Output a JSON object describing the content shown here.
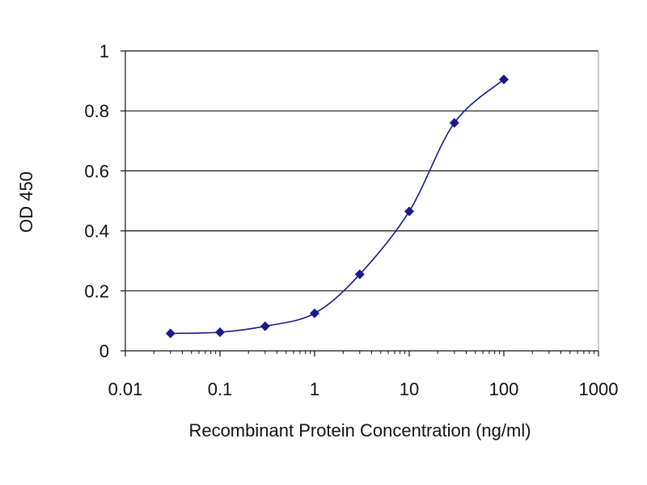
{
  "chart_data": {
    "type": "line",
    "title": "",
    "xlabel": "Recombinant Protein Concentration (ng/ml)",
    "ylabel": "OD 450",
    "x_scale": "log",
    "xlim": [
      0.01,
      1000
    ],
    "ylim": [
      0,
      1
    ],
    "x_ticks": [
      {
        "value": 0.01,
        "label": "0.01"
      },
      {
        "value": 0.1,
        "label": "0.1"
      },
      {
        "value": 1,
        "label": "1"
      },
      {
        "value": 10,
        "label": "10"
      },
      {
        "value": 100,
        "label": "100"
      },
      {
        "value": 1000,
        "label": "1000"
      }
    ],
    "y_ticks": [
      {
        "value": 0,
        "label": "0"
      },
      {
        "value": 0.2,
        "label": "0.2"
      },
      {
        "value": 0.4,
        "label": "0.4"
      },
      {
        "value": 0.6,
        "label": "0.6"
      },
      {
        "value": 0.8,
        "label": "0.8"
      },
      {
        "value": 1,
        "label": "1"
      }
    ],
    "grid": "horizontal",
    "legend": "none",
    "series": [
      {
        "name": "",
        "color": "#1a1a8c",
        "x": [
          0.03,
          0.1,
          0.3,
          1,
          3,
          10,
          30,
          100
        ],
        "y": [
          0.058,
          0.062,
          0.082,
          0.125,
          0.255,
          0.465,
          0.76,
          0.905
        ]
      }
    ]
  }
}
